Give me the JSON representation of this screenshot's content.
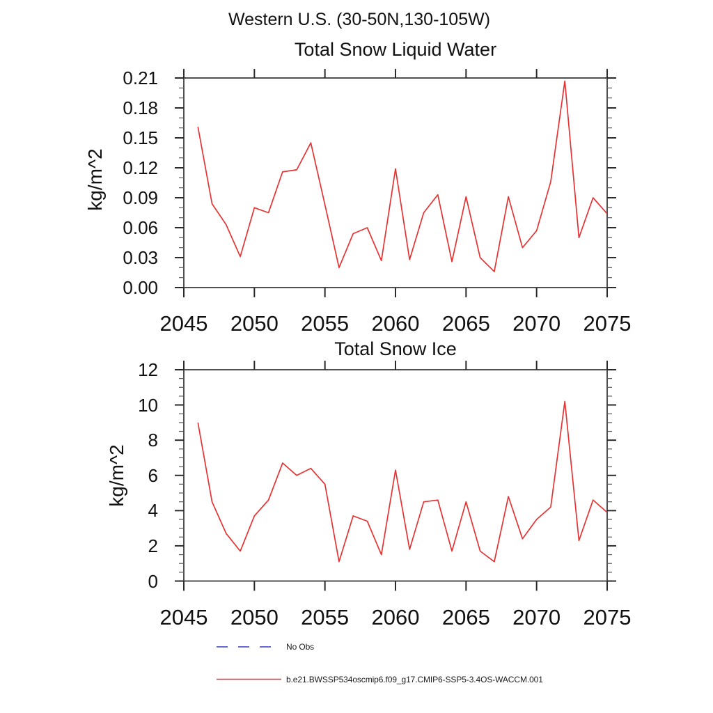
{
  "figure": {
    "suptitle": "Western U.S. (30-50N,130-105W)",
    "background_color": "#ffffff",
    "series_color": "#e63232",
    "frame_color": "#4f4f4f",
    "tick_color": "#2b2b2b",
    "minor_tick_color": "#5a5a5a"
  },
  "legend": {
    "no_obs_label": "No Obs",
    "no_obs_color": "#6b6bd6",
    "no_obs_style": "dashed",
    "model_label": "b.e21.BWSSP534oscmip6.f09_g17.CMIP6-SSP5-3.4OS-WACCM.001",
    "model_color": "#e63232",
    "model_style": "solid"
  },
  "chart_data": [
    {
      "type": "line",
      "title": "Total Snow Liquid Water",
      "ylabel": "kg/m^2",
      "xlim": [
        2045,
        2075
      ],
      "ylim": [
        0,
        0.21
      ],
      "grid": false,
      "x_major_ticks": [
        2045,
        2050,
        2055,
        2060,
        2065,
        2070,
        2075
      ],
      "y_tick_labels": [
        "0.00",
        "0.03",
        "0.06",
        "0.09",
        "0.12",
        "0.15",
        "0.18",
        "0.21"
      ],
      "y_minor_step": 0.01,
      "x": [
        2046,
        2047,
        2048,
        2049,
        2050,
        2051,
        2052,
        2053,
        2054,
        2055,
        2056,
        2057,
        2058,
        2059,
        2060,
        2061,
        2062,
        2063,
        2064,
        2065,
        2066,
        2067,
        2068,
        2069,
        2070,
        2071,
        2072,
        2073,
        2074,
        2075
      ],
      "series": [
        {
          "name": "b.e21.BWSSP534oscmip6.f09_g17.CMIP6-SSP5-3.4OS-WACCM.001",
          "values": [
            0.161,
            0.084,
            0.063,
            0.031,
            0.08,
            0.075,
            0.116,
            0.118,
            0.145,
            0.083,
            0.02,
            0.054,
            0.06,
            0.027,
            0.119,
            0.028,
            0.075,
            0.093,
            0.026,
            0.091,
            0.03,
            0.016,
            0.091,
            0.04,
            0.057,
            0.106,
            0.207,
            0.05,
            0.09,
            0.074
          ]
        }
      ]
    },
    {
      "type": "line",
      "title": "Total Snow Ice",
      "ylabel": "kg/m^2",
      "xlim": [
        2045,
        2075
      ],
      "ylim": [
        0,
        12
      ],
      "grid": false,
      "x_major_ticks": [
        2045,
        2050,
        2055,
        2060,
        2065,
        2070,
        2075
      ],
      "y_tick_labels": [
        "0",
        "2",
        "4",
        "6",
        "8",
        "10",
        "12"
      ],
      "y_minor_step": 0.5,
      "x": [
        2046,
        2047,
        2048,
        2049,
        2050,
        2051,
        2052,
        2053,
        2054,
        2055,
        2056,
        2057,
        2058,
        2059,
        2060,
        2061,
        2062,
        2063,
        2064,
        2065,
        2066,
        2067,
        2068,
        2069,
        2070,
        2071,
        2072,
        2073,
        2074,
        2075
      ],
      "series": [
        {
          "name": "b.e21.BWSSP534oscmip6.f09_g17.CMIP6-SSP5-3.4OS-WACCM.001",
          "values": [
            9.0,
            4.5,
            2.7,
            1.7,
            3.7,
            4.6,
            6.7,
            6.0,
            6.4,
            5.5,
            1.1,
            3.7,
            3.4,
            1.5,
            6.3,
            1.8,
            4.5,
            4.6,
            1.7,
            4.5,
            1.7,
            1.1,
            4.8,
            2.4,
            3.5,
            4.2,
            10.2,
            2.3,
            4.6,
            3.9
          ]
        }
      ]
    }
  ]
}
